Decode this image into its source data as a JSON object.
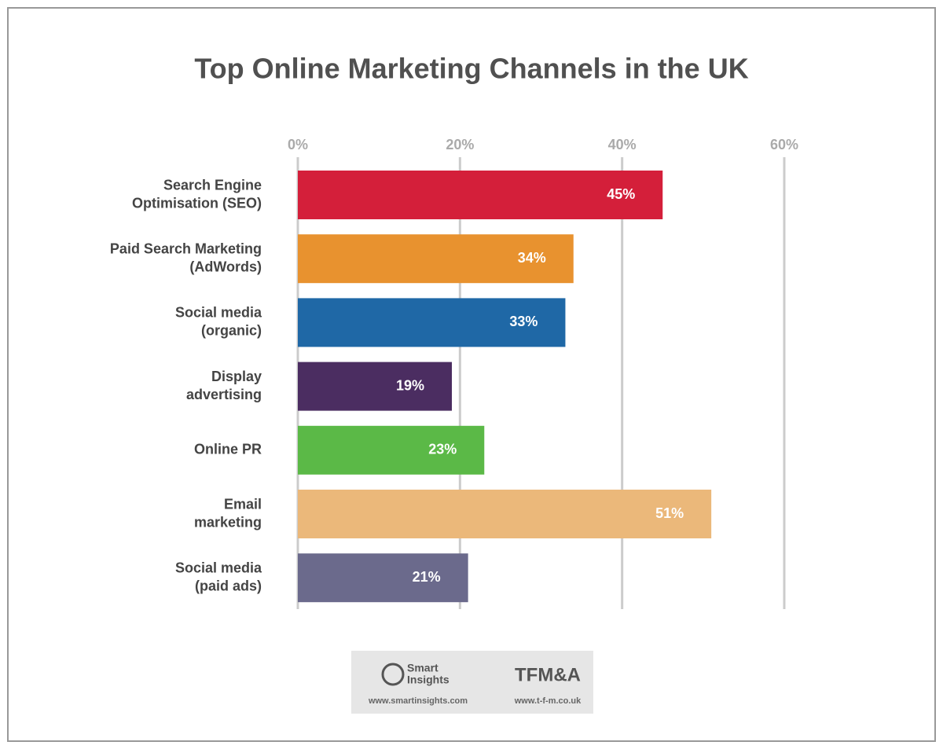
{
  "chart_data": {
    "type": "barh",
    "title": "Top Online Marketing Channels in the UK",
    "categories": [
      [
        "Search Engine",
        "Optimisation (SEO)"
      ],
      [
        "Paid Search Marketing",
        "(AdWords)"
      ],
      [
        "Social media",
        "(organic)"
      ],
      [
        "Display",
        "advertising"
      ],
      [
        "Online PR"
      ],
      [
        "Email",
        "marketing"
      ],
      [
        "Social media",
        "(paid ads)"
      ]
    ],
    "values": [
      45,
      34,
      33,
      19,
      23,
      51,
      21
    ],
    "value_labels": [
      "45%",
      "34%",
      "33%",
      "19%",
      "23%",
      "51%",
      "21%"
    ],
    "colors": [
      "#d41f3a",
      "#e8922f",
      "#1f68a6",
      "#4b2d61",
      "#5bb947",
      "#ebb87a",
      "#6b6a8c"
    ],
    "xlim": [
      0,
      60
    ],
    "xticks": [
      {
        "value": 0,
        "label": "0%"
      },
      {
        "value": 20,
        "label": "20%"
      },
      {
        "value": 40,
        "label": "40%"
      },
      {
        "value": 60,
        "label": "60%"
      }
    ],
    "grid": true
  },
  "footer": {
    "left_name": [
      "Smart",
      "Insights"
    ],
    "left_url": "www.smartinsights.com",
    "right_name": "TFM&A",
    "right_url": "www.t-f-m.co.uk"
  }
}
